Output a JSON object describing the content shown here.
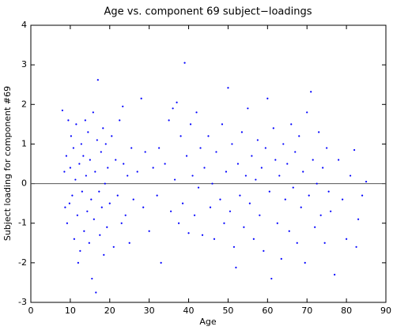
{
  "chart_data": {
    "type": "scatter",
    "title": "Age vs. component 69 subject−loadings",
    "xlabel": "Age",
    "ylabel": "Subject loading for component #69",
    "xlim": [
      0,
      90
    ],
    "ylim": [
      -3,
      4
    ],
    "xticks": [
      0,
      10,
      20,
      30,
      40,
      50,
      60,
      70,
      80,
      90
    ],
    "yticks": [
      -3,
      -2,
      -1,
      0,
      1,
      2,
      3,
      4
    ],
    "hline": 0,
    "color": "#0000ff",
    "x": [
      8,
      8.5,
      8.7,
      9,
      9.2,
      9.5,
      9.8,
      10,
      10.2,
      10.5,
      10.8,
      11,
      11.3,
      11.5,
      11.8,
      12,
      12.3,
      12.5,
      12.8,
      13,
      13.3,
      13.5,
      13.8,
      14,
      14.3,
      14.5,
      14.8,
      15,
      15.3,
      15.5,
      15.8,
      16,
      16.3,
      16.5,
      16.8,
      17,
      17.3,
      17.5,
      17.8,
      18,
      18.3,
      18.5,
      18.8,
      19,
      19.3,
      19.5,
      20,
      20.5,
      21,
      21.5,
      22,
      22.5,
      23,
      23.3,
      23.5,
      24,
      24.5,
      25,
      25.5,
      26,
      27,
      28,
      28.5,
      29,
      30,
      31,
      32,
      32.5,
      33,
      34,
      35,
      35.5,
      36,
      36.5,
      37,
      37.5,
      38,
      38.5,
      39,
      39.5,
      40,
      40.5,
      41,
      41.5,
      42,
      42.5,
      43,
      43.5,
      44,
      45,
      45.5,
      46,
      46.5,
      47,
      48,
      48.5,
      49,
      49.5,
      50,
      50.5,
      51,
      51.5,
      52,
      52.5,
      53,
      53.5,
      54,
      54.5,
      55,
      55.5,
      56,
      56.5,
      57,
      57.5,
      58,
      58.5,
      59,
      59.5,
      60,
      60.5,
      61,
      61.5,
      62,
      62.5,
      63,
      63.5,
      64,
      64.5,
      65,
      65.5,
      66,
      66.5,
      67,
      67.5,
      68,
      68.5,
      69,
      69.5,
      70,
      70.5,
      71,
      71.5,
      72,
      72.5,
      73,
      73.5,
      74,
      74.5,
      75,
      75.5,
      76,
      77,
      78,
      79,
      80,
      81,
      82,
      82.5,
      83,
      84,
      85
    ],
    "values": [
      1.85,
      0.3,
      -0.6,
      0.7,
      -1.0,
      1.6,
      -0.5,
      0.4,
      1.2,
      -0.3,
      0.9,
      -1.4,
      0.1,
      1.5,
      -0.8,
      -2.0,
      0.5,
      -1.7,
      1.0,
      -0.2,
      0.7,
      -1.2,
      1.6,
      0.2,
      -0.7,
      1.3,
      -1.5,
      0.6,
      -0.4,
      -2.4,
      1.8,
      -0.9,
      0.3,
      -2.75,
      1.1,
      2.62,
      -0.2,
      -1.3,
      0.8,
      -0.6,
      1.4,
      -1.8,
      0.0,
      1.0,
      -1.1,
      0.4,
      -0.5,
      1.2,
      -1.6,
      0.6,
      -0.3,
      1.6,
      -1.0,
      1.95,
      0.5,
      -0.8,
      0.2,
      -1.5,
      0.9,
      -0.4,
      0.3,
      2.15,
      -0.6,
      0.8,
      -1.2,
      0.4,
      -0.3,
      0.9,
      -2.0,
      0.5,
      1.6,
      -0.7,
      1.9,
      0.1,
      2.05,
      -1.0,
      1.2,
      -0.5,
      3.05,
      0.7,
      -1.25,
      1.5,
      0.2,
      -0.8,
      1.8,
      -0.1,
      0.9,
      -1.3,
      0.4,
      1.2,
      -0.6,
      0.0,
      -1.4,
      0.8,
      -0.4,
      1.5,
      -1.0,
      0.3,
      2.42,
      -0.7,
      1.0,
      -1.6,
      -2.12,
      0.5,
      -0.3,
      1.3,
      -1.1,
      0.2,
      1.9,
      -0.5,
      0.7,
      -1.4,
      0.1,
      1.1,
      -0.8,
      0.4,
      -1.7,
      0.9,
      2.15,
      -0.2,
      -2.4,
      1.4,
      0.6,
      -1.0,
      0.2,
      -1.9,
      1.0,
      -0.4,
      0.5,
      -1.2,
      1.5,
      -0.1,
      0.8,
      -1.5,
      1.2,
      -0.6,
      0.3,
      -2.0,
      1.8,
      -0.3,
      2.32,
      0.6,
      -1.1,
      0.0,
      1.3,
      -0.8,
      0.4,
      -1.5,
      0.9,
      -0.2,
      -0.7,
      -2.3,
      0.6,
      -0.4,
      -1.4,
      0.2,
      0.85,
      -1.6,
      -0.9,
      -0.3,
      0.05
    ]
  }
}
